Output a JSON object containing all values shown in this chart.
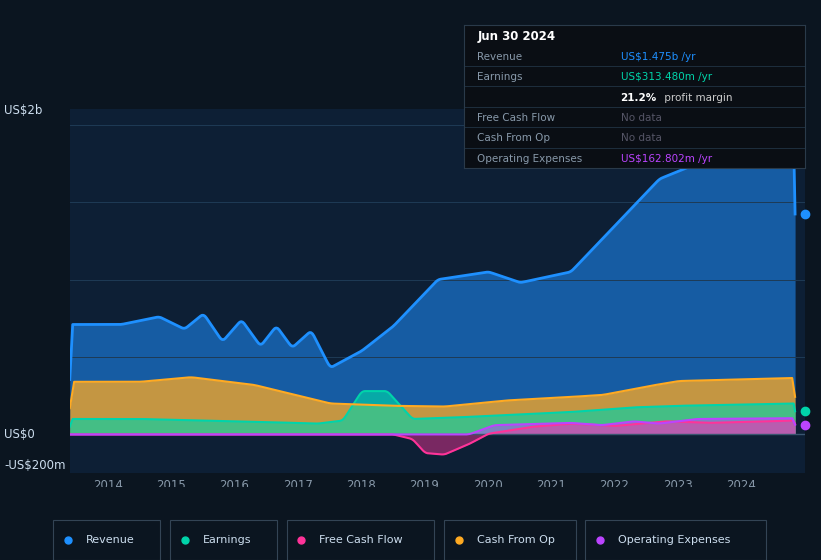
{
  "background_color": "#0b1520",
  "chart_bg": "#0d1f35",
  "ylabel_top": "US$2b",
  "ylabel_zero": "US$0",
  "ylabel_bottom": "-US$200m",
  "x_ticks": [
    2014,
    2015,
    2016,
    2017,
    2018,
    2019,
    2020,
    2021,
    2022,
    2023,
    2024
  ],
  "colors": {
    "revenue": "#1e90ff",
    "earnings": "#00d4aa",
    "free_cash_flow": "#ff3399",
    "cash_from_op": "#ffaa22",
    "operating_expenses": "#bb44ff"
  },
  "legend": [
    {
      "label": "Revenue",
      "color": "#1e90ff"
    },
    {
      "label": "Earnings",
      "color": "#00d4aa"
    },
    {
      "label": "Free Cash Flow",
      "color": "#ff3399"
    },
    {
      "label": "Cash From Op",
      "color": "#ffaa22"
    },
    {
      "label": "Operating Expenses",
      "color": "#bb44ff"
    }
  ],
  "infobox_title": "Jun 30 2024",
  "infobox_rows": [
    {
      "label": "Revenue",
      "value": "US$1.475b",
      "suffix": " /yr",
      "value_color": "#1e90ff"
    },
    {
      "label": "Earnings",
      "value": "US$313.480m",
      "suffix": " /yr",
      "value_color": "#00d4aa"
    },
    {
      "label": "",
      "value": "21.2%",
      "suffix": " profit margin",
      "value_color": "#ffffff"
    },
    {
      "label": "Free Cash Flow",
      "value": "No data",
      "suffix": "",
      "value_color": "#666666"
    },
    {
      "label": "Cash From Op",
      "value": "No data",
      "suffix": "",
      "value_color": "#666666"
    },
    {
      "label": "Operating Expenses",
      "value": "US$162.802m",
      "suffix": " /yr",
      "value_color": "#bb44ff"
    }
  ],
  "ymin": -250,
  "ymax": 2100,
  "xmin": 2013.4,
  "xmax": 2025.0
}
